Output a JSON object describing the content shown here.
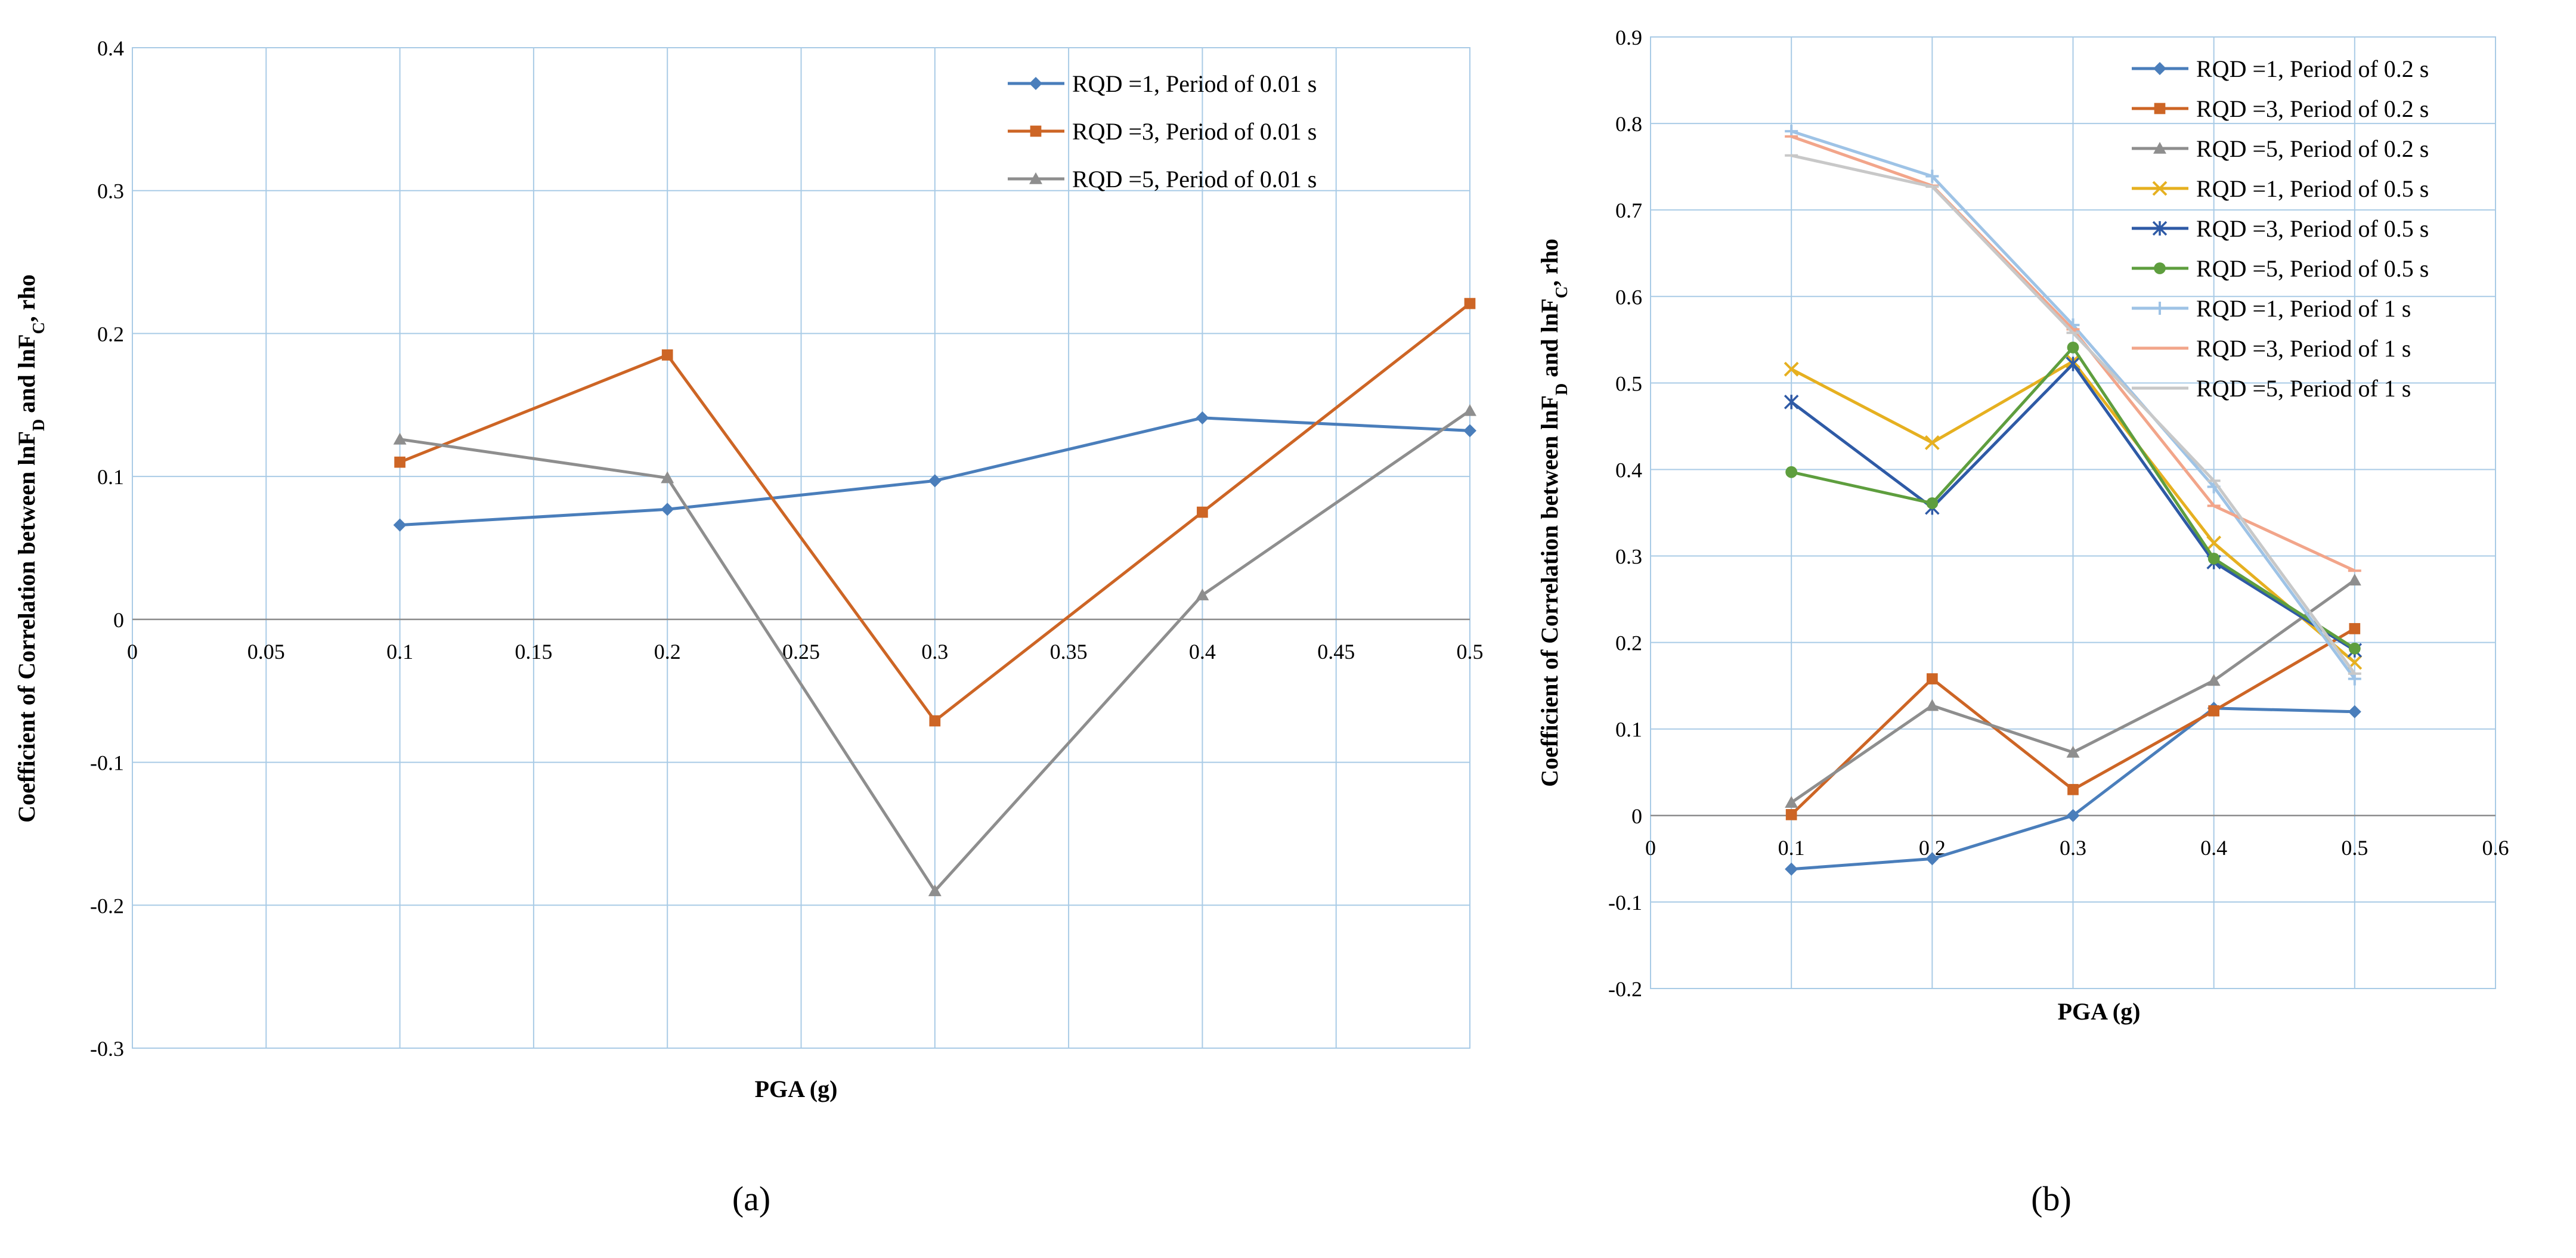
{
  "chart_data": [
    {
      "type": "line",
      "panel_label": "(a)",
      "title": "",
      "xlabel": "PGA (g)",
      "ylabel": "Coefficient of Correlation  between lnF",
      "ylabel_sub1": "D",
      "ylabel_mid": " and lnF",
      "ylabel_sub2": "C",
      "ylabel_end": ", rho",
      "xlim": [
        0,
        0.5
      ],
      "ylim": [
        -0.3,
        0.4
      ],
      "x_ticks": [
        "0",
        "0.05",
        "0.1",
        "0.15",
        "0.2",
        "0.25",
        "0.3",
        "0.35",
        "0.4",
        "0.45",
        "0.5"
      ],
      "y_ticks": [
        "-0.3",
        "-0.2",
        "-0.1",
        "0",
        "0.1",
        "0.2",
        "0.3",
        "0.4"
      ],
      "grid": true,
      "legend_position": "top-right",
      "x": [
        0.1,
        0.2,
        0.3,
        0.4,
        0.5
      ],
      "series": [
        {
          "name": "RQD =1, Period of 0.01 s",
          "color": "#4a7ebb",
          "marker": "diamond",
          "values": [
            0.066,
            0.077,
            0.097,
            0.141,
            0.132
          ]
        },
        {
          "name": "RQD =3, Period of 0.01 s",
          "color": "#cd6525",
          "marker": "square",
          "values": [
            0.11,
            0.185,
            -0.071,
            0.075,
            0.221
          ]
        },
        {
          "name": "RQD =5, Period of 0.01 s",
          "color": "#8e8e8e",
          "marker": "triangle",
          "values": [
            0.126,
            0.099,
            -0.19,
            0.017,
            0.146
          ]
        }
      ]
    },
    {
      "type": "line",
      "panel_label": "(b)",
      "title": "",
      "xlabel": "PGA (g)",
      "ylabel": "Coefficient of Correlation  between lnF",
      "ylabel_sub1": "D",
      "ylabel_mid": " and lnF",
      "ylabel_sub2": "C",
      "ylabel_end": ", rho",
      "xlim": [
        0,
        0.6
      ],
      "ylim": [
        -0.2,
        0.9
      ],
      "x_ticks": [
        "0",
        "0.1",
        "0.2",
        "0.3",
        "0.4",
        "0.5",
        "0.6"
      ],
      "y_ticks": [
        "-0.2",
        "-0.1",
        "0",
        "0.1",
        "0.2",
        "0.3",
        "0.4",
        "0.5",
        "0.6",
        "0.7",
        "0.8",
        "0.9"
      ],
      "grid": true,
      "legend_position": "top-right",
      "x": [
        0.1,
        0.2,
        0.3,
        0.4,
        0.5
      ],
      "series": [
        {
          "name": "RQD =1, Period of 0.2 s",
          "color": "#4a7ebb",
          "marker": "diamond",
          "values": [
            -0.062,
            -0.05,
            0.0,
            0.124,
            0.12
          ]
        },
        {
          "name": "RQD =3, Period of 0.2 s",
          "color": "#cd6525",
          "marker": "square",
          "values": [
            0.001,
            0.158,
            0.03,
            0.121,
            0.216
          ]
        },
        {
          "name": "RQD =5, Period of 0.2 s",
          "color": "#8e8e8e",
          "marker": "triangle",
          "values": [
            0.015,
            0.127,
            0.073,
            0.156,
            0.272
          ]
        },
        {
          "name": "RQD =1, Period of 0.5 s",
          "color": "#e6b020",
          "marker": "x",
          "values": [
            0.516,
            0.431,
            0.525,
            0.315,
            0.177
          ]
        },
        {
          "name": "RQD =3, Period of 0.5 s",
          "color": "#2e5aa6",
          "marker": "star",
          "values": [
            0.478,
            0.356,
            0.522,
            0.293,
            0.191
          ]
        },
        {
          "name": "RQD =5, Period of 0.5 s",
          "color": "#5e9e3e",
          "marker": "circle",
          "values": [
            0.397,
            0.361,
            0.541,
            0.297,
            0.193
          ]
        },
        {
          "name": "RQD =1, Period of 1 s",
          "color": "#9ec3e6",
          "marker": "plus",
          "values": [
            0.791,
            0.739,
            0.567,
            0.38,
            0.158
          ]
        },
        {
          "name": "RQD =3, Period of 1 s",
          "color": "#f2a58a",
          "marker": "dash",
          "values": [
            0.785,
            0.728,
            0.562,
            0.358,
            0.283
          ]
        },
        {
          "name": "RQD =5, Period of 1 s",
          "color": "#c8c8c8",
          "marker": "dash",
          "values": [
            0.763,
            0.727,
            0.558,
            0.387,
            0.164
          ]
        }
      ]
    }
  ]
}
